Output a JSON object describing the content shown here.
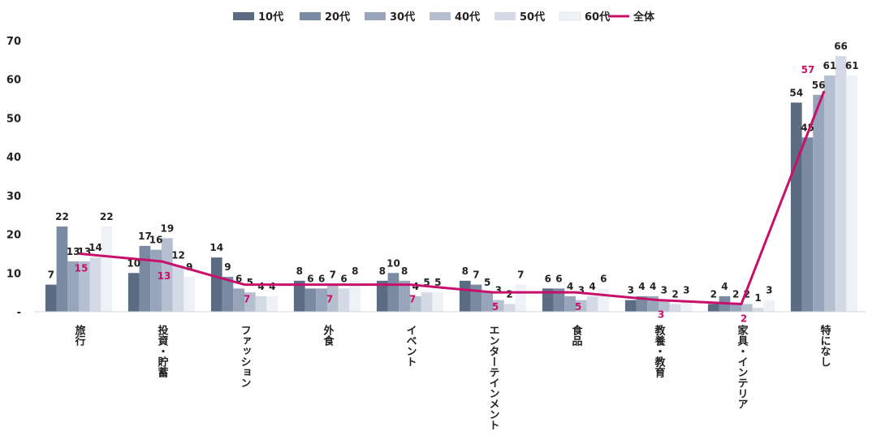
{
  "chart_data": {
    "type": "bar",
    "title": "",
    "xlabel": "",
    "ylabel": "",
    "ylim": [
      0,
      70
    ],
    "yticks": [
      {
        "value": 0,
        "label": "-"
      },
      {
        "value": 10,
        "label": "10"
      },
      {
        "value": 20,
        "label": "20"
      },
      {
        "value": 30,
        "label": "30"
      },
      {
        "value": 40,
        "label": "40"
      },
      {
        "value": 50,
        "label": "50"
      },
      {
        "value": 60,
        "label": "60"
      },
      {
        "value": 70,
        "label": "70"
      }
    ],
    "grid": false,
    "legend_position": "top",
    "categories": [
      "旅行",
      "投資・貯蓄",
      "ファッション",
      "外食",
      "イベント",
      "エンターテインメント",
      "食品",
      "教養・教育",
      "家具・インテリア",
      "特になし"
    ],
    "series": [
      {
        "name": "10代",
        "color": "#5b6b82",
        "values": [
          7,
          10,
          14,
          8,
          8,
          8,
          6,
          3,
          2,
          54
        ],
        "labels": [
          "7",
          "10",
          "14",
          "8",
          "8",
          "8",
          "6",
          "3",
          "2",
          "54"
        ]
      },
      {
        "name": "20代",
        "color": "#7a8aa3",
        "values": [
          22,
          17,
          9,
          6,
          10,
          7,
          6,
          4,
          4,
          45
        ],
        "labels": [
          "22",
          "17",
          "9",
          "6",
          "10",
          "7",
          "6",
          "4",
          "4",
          "45"
        ]
      },
      {
        "name": "30代",
        "color": "#97a4b9",
        "values": [
          13,
          16,
          6,
          6,
          8,
          5,
          4,
          4,
          2,
          56
        ],
        "labels": [
          "13",
          "16",
          "6",
          "6",
          "8",
          "5",
          "4",
          "4",
          "2",
          "56"
        ]
      },
      {
        "name": "40代",
        "color": "#b5bfcf",
        "values": [
          13,
          19,
          5,
          7,
          4,
          3,
          3,
          3,
          2,
          61
        ],
        "labels": [
          "13",
          "19",
          "5",
          "7",
          "4",
          "3",
          "3",
          "3",
          "2",
          "61"
        ]
      },
      {
        "name": "50代",
        "color": "#d3dae5",
        "values": [
          14,
          12,
          4,
          6,
          5,
          2,
          4,
          2,
          1,
          66
        ],
        "labels": [
          "14",
          "12",
          "4",
          "6",
          "5",
          "2",
          "4",
          "2",
          "1",
          "66"
        ]
      },
      {
        "name": "60代",
        "color": "#eef1f6",
        "values": [
          22,
          9,
          4,
          8,
          5,
          7,
          6,
          3,
          3,
          61
        ],
        "labels": [
          "22",
          "9",
          "4",
          "8",
          "5",
          "7",
          "6",
          "3",
          "3",
          "61"
        ]
      }
    ],
    "line_series": {
      "name": "全体",
      "color": "#c8106a",
      "values": [
        15,
        13,
        7,
        7,
        7,
        5,
        5,
        3,
        2,
        57
      ],
      "labels": [
        "15",
        "13",
        "7",
        "7",
        "7",
        "5",
        "5",
        "3",
        "2",
        "57"
      ]
    }
  }
}
